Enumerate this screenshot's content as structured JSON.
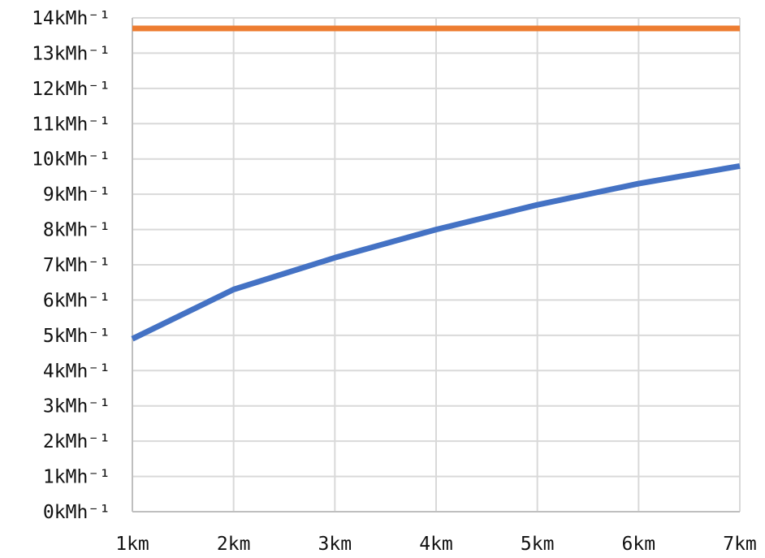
{
  "chart_data": {
    "type": "line",
    "title": "",
    "xlabel": "",
    "ylabel": "",
    "categories": [
      "1km",
      "2km",
      "3km",
      "4km",
      "5km",
      "6km",
      "7km"
    ],
    "x": [
      1,
      2,
      3,
      4,
      5,
      6,
      7
    ],
    "xlim": [
      1,
      7
    ],
    "ylim": [
      0,
      14
    ],
    "y_ticks": [
      "0kMh⁻¹",
      "1kMh⁻¹",
      "2kMh⁻¹",
      "3kMh⁻¹",
      "4kMh⁻¹",
      "5kMh⁻¹",
      "6kMh⁻¹",
      "7kMh⁻¹",
      "8kMh⁻¹",
      "9kMh⁻¹",
      "10kMh⁻¹",
      "11kMh⁻¹",
      "12kMh⁻¹",
      "13kMh⁻¹",
      "14kMh⁻¹"
    ],
    "grid": true,
    "legend": "none",
    "series": [
      {
        "color": "#4472c4",
        "values": [
          4.9,
          6.3,
          7.2,
          8.0,
          8.7,
          9.3,
          9.8
        ]
      },
      {
        "color": "#ed7d31",
        "values": [
          13.7,
          13.7,
          13.7,
          13.7,
          13.7,
          13.7,
          13.7
        ]
      }
    ]
  }
}
